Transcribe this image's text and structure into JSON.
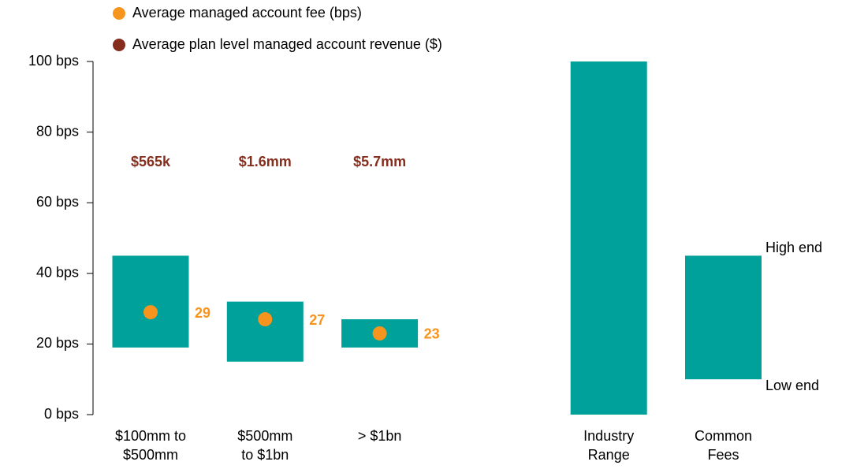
{
  "chart_data": {
    "type": "range_bar",
    "categories": [
      [
        "$100mm to",
        "$500mm"
      ],
      [
        "$500mm",
        "to $1bn"
      ],
      [
        "> $1bn"
      ],
      [
        "Industry",
        "Range"
      ],
      [
        "Common",
        "Fees"
      ]
    ],
    "low": [
      19,
      15,
      19,
      0,
      10
    ],
    "high": [
      45,
      32,
      27,
      100,
      45
    ],
    "bar_color": "#00a19a",
    "series": [
      {
        "name": "Average managed account fee (bps)",
        "color": "#f7941d",
        "values": [
          29,
          27,
          23,
          null,
          null
        ]
      },
      {
        "name": "Average plan level managed account revenue ($)",
        "color": "#862d1d",
        "values": [
          565000,
          1600000,
          5700000,
          null,
          null
        ],
        "value_labels": [
          "$565k",
          "$1.6mm",
          "$5.7mm",
          null,
          null
        ]
      }
    ],
    "annotations": [
      "High end",
      "Low end"
    ],
    "ylim": [
      0,
      100
    ],
    "yticks": [
      {
        "value": 0,
        "label": "0 bps"
      },
      {
        "value": 20,
        "label": "20 bps"
      },
      {
        "value": 40,
        "label": "40 bps"
      },
      {
        "value": 60,
        "label": "60 bps"
      },
      {
        "value": 80,
        "label": "80 bps"
      },
      {
        "value": 100,
        "label": "100 bps"
      }
    ]
  }
}
